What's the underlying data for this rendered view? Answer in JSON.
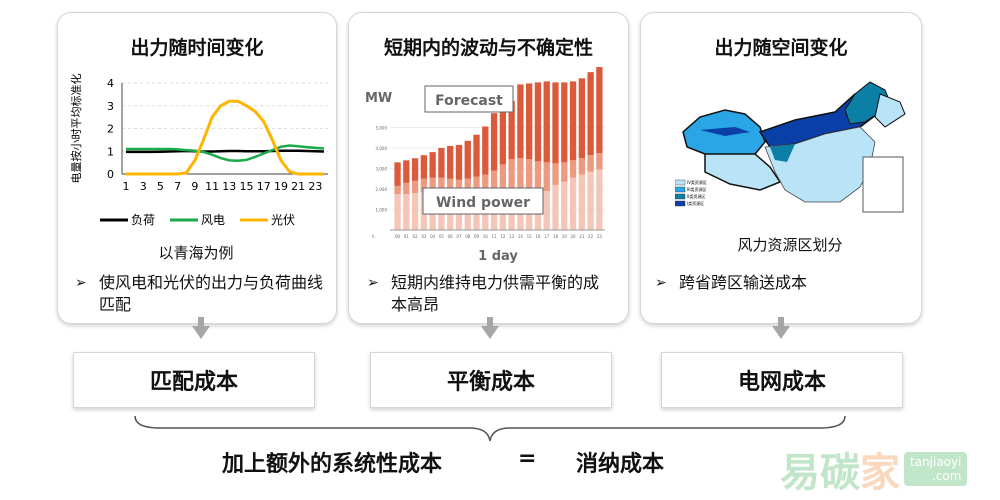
{
  "panels": [
    {
      "title": "出力随时间变化",
      "caption": "以青海为例",
      "bullet": "使风电和光伏的出力与负荷曲线匹配"
    },
    {
      "title": "短期内的波动与不确定性",
      "bullet": "短期内维持电力供需平衡的成本高昂"
    },
    {
      "title": "出力随空间变化",
      "caption": "风力资源区划分",
      "bullet": "跨省跨区输送成本"
    }
  ],
  "boxes": [
    "匹配成本",
    "平衡成本",
    "电网成本"
  ],
  "bottom": {
    "left": "加上额外的系统性成本",
    "equals": "=",
    "right": "消纳成本"
  },
  "watermark": {
    "text": "易碳家",
    "badge": "tanjiaoyi .com"
  },
  "chart_data": [
    {
      "type": "line",
      "ylabel": "电量按小时平均标准化",
      "ylim": [
        0,
        4
      ],
      "yticks": [
        0,
        1,
        2,
        3,
        4
      ],
      "x": [
        1,
        2,
        3,
        4,
        5,
        6,
        7,
        8,
        9,
        10,
        11,
        12,
        13,
        14,
        15,
        16,
        17,
        18,
        19,
        20,
        21,
        22,
        23,
        24
      ],
      "xtick_labels": [
        "1",
        "3",
        "5",
        "7",
        "9",
        "11",
        "13",
        "15",
        "17",
        "19",
        "21",
        "23"
      ],
      "grid": "horizontal dashed",
      "legend_position": "bottom",
      "series": [
        {
          "name": "负荷",
          "color": "#000000",
          "values": [
            0.97,
            0.97,
            0.97,
            0.97,
            0.98,
            0.99,
            1.0,
            1.01,
            1.0,
            0.99,
            0.99,
            1.0,
            1.01,
            1.01,
            1.0,
            1.0,
            1.0,
            1.01,
            1.02,
            1.02,
            1.02,
            1.01,
            1.0,
            0.99
          ]
        },
        {
          "name": "风电",
          "color": "#1aaa4a",
          "values": [
            1.1,
            1.1,
            1.1,
            1.1,
            1.1,
            1.1,
            1.08,
            1.05,
            1.02,
            0.97,
            0.85,
            0.7,
            0.6,
            0.58,
            0.62,
            0.75,
            0.9,
            1.05,
            1.2,
            1.25,
            1.22,
            1.18,
            1.15,
            1.12
          ]
        },
        {
          "name": "光伏",
          "color": "#ffb400",
          "values": [
            0,
            0,
            0,
            0,
            0,
            0,
            0,
            0.05,
            0.6,
            1.5,
            2.5,
            3.0,
            3.2,
            3.2,
            3.0,
            2.75,
            2.3,
            1.5,
            0.6,
            0.1,
            0,
            0,
            0,
            0
          ]
        }
      ]
    },
    {
      "type": "bar",
      "stacked": true,
      "ylabel": "MW",
      "xlabel": "1 day",
      "ylim": [
        0,
        8000
      ],
      "ytick_labels": [
        "1,000",
        "2,000",
        "3,000",
        "4,000",
        "5,000"
      ],
      "categories": [
        "00",
        "01",
        "02",
        "03",
        "04",
        "05",
        "06",
        "07",
        "08",
        "09",
        "10",
        "11",
        "12",
        "13",
        "14",
        "15",
        "16",
        "17",
        "18",
        "19",
        "20",
        "21",
        "22",
        "23"
      ],
      "x_axis_unit": "h",
      "annotations": [
        "Forecast",
        "Wind power"
      ],
      "colors": [
        "#f5c6b8",
        "#ec9a80",
        "#dc5a3c"
      ],
      "series": [
        {
          "values": [
            1750,
            1750,
            1800,
            1850,
            1850,
            1900,
            1900,
            1900,
            1900,
            1900,
            1900,
            1900,
            1900,
            1900,
            1900,
            1900,
            1900,
            1900,
            2200,
            2350,
            2550,
            2700,
            2850,
            2950
          ]
        },
        {
          "values": [
            400,
            550,
            600,
            650,
            700,
            650,
            600,
            550,
            600,
            700,
            800,
            1000,
            1300,
            1550,
            1600,
            1550,
            1450,
            1400,
            1050,
            950,
            850,
            800,
            800,
            800
          ]
        },
        {
          "values": [
            1150,
            1100,
            1100,
            1150,
            1250,
            1450,
            1600,
            1700,
            1850,
            2050,
            2350,
            2800,
            2800,
            2850,
            3600,
            3700,
            3850,
            3950,
            3950,
            3900,
            3850,
            3900,
            4050,
            4200
          ]
        }
      ]
    },
    {
      "type": "map",
      "caption": "风力资源区划分",
      "legend": [
        {
          "label": "IV类资源区",
          "color": "#b9e3f7"
        },
        {
          "label": "III类资源区",
          "color": "#2aa5e6"
        },
        {
          "label": "II类资源区",
          "color": "#0b7fa6"
        },
        {
          "label": "I类资源区",
          "color": "#0a3fa8"
        }
      ]
    }
  ]
}
